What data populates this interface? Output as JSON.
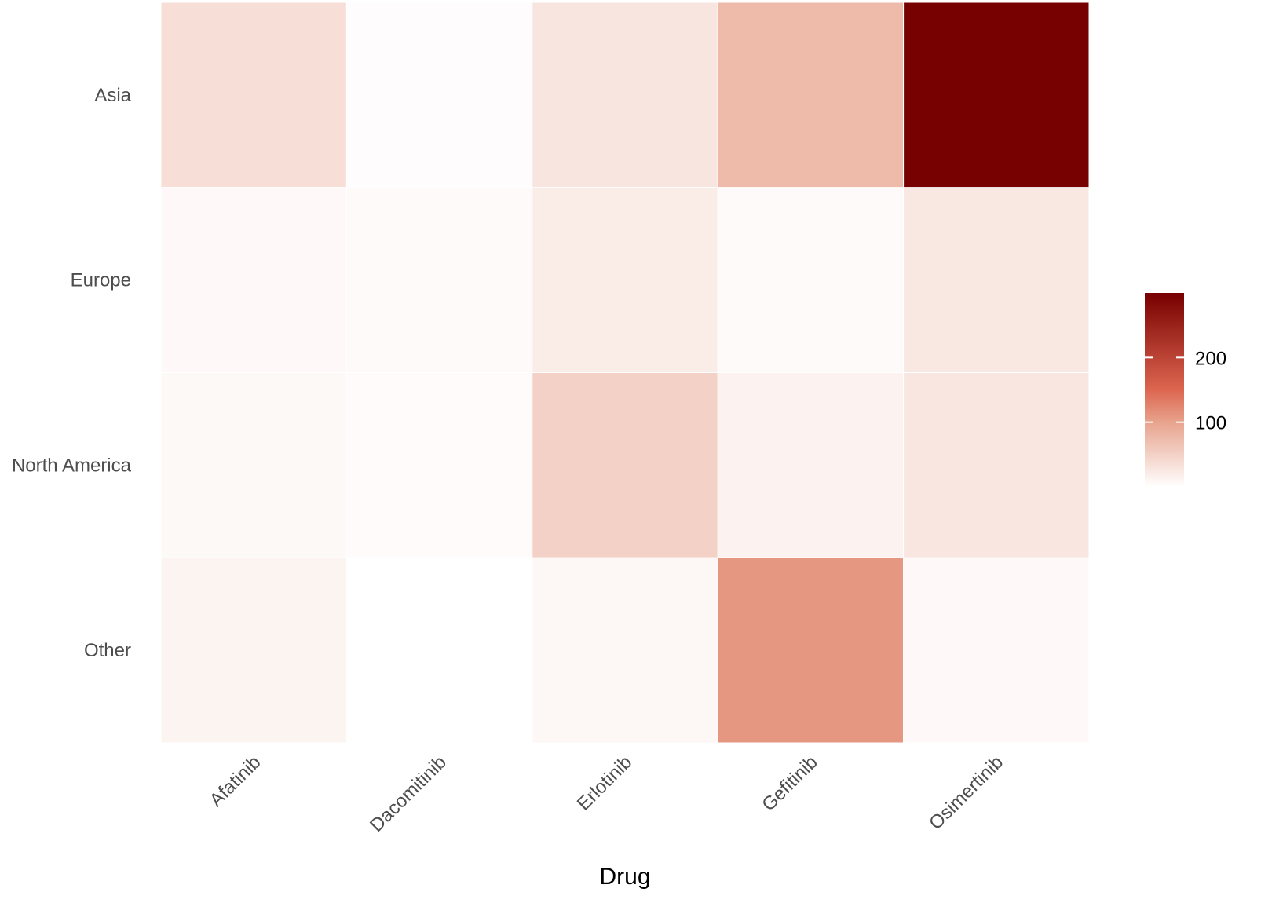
{
  "chart_data": {
    "type": "heatmap",
    "title": "",
    "xlabel": "Drug",
    "ylabel": "",
    "x_categories": [
      "Afatinib",
      "Dacomitinib",
      "Erlotinib",
      "Gefitinib",
      "Osimertinib"
    ],
    "y_categories": [
      "Asia",
      "Europe",
      "North America",
      "Other"
    ],
    "values": [
      [
        35,
        3,
        28,
        75,
        300
      ],
      [
        6,
        5,
        20,
        5,
        25
      ],
      [
        7,
        4,
        50,
        14,
        27
      ],
      [
        12,
        0,
        8,
        110,
        6
      ]
    ],
    "colorbar": {
      "range": [
        0,
        300
      ],
      "ticks": [
        100,
        200
      ],
      "tick_labels": [
        "100",
        "200"
      ],
      "colors": [
        "#FFFFFF",
        "#E8A48E",
        "#DD6650",
        "#770000"
      ],
      "legend_position": "right"
    },
    "grid": false
  }
}
